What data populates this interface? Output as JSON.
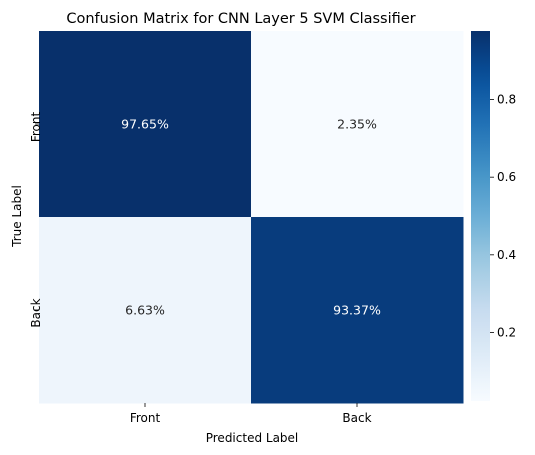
{
  "chart_data": {
    "type": "heatmap",
    "title": "Confusion Matrix for CNN Layer 5 SVM Classifier",
    "xlabel": "Predicted Label",
    "ylabel": "True Label",
    "x_categories": [
      "Front",
      "Back"
    ],
    "y_categories": [
      "Front",
      "Back"
    ],
    "values": [
      [
        0.9765,
        0.0235
      ],
      [
        0.0663,
        0.9337
      ]
    ],
    "cell_labels": [
      [
        "97.65%",
        "2.35%"
      ],
      [
        "6.63%",
        "93.37%"
      ]
    ],
    "colormap": "Blues",
    "colorbar": {
      "range": [
        0.0235,
        0.9765
      ],
      "ticks": [
        0.2,
        0.4,
        0.6,
        0.8
      ],
      "tick_labels": [
        "0.2",
        "0.4",
        "0.6",
        "0.8"
      ]
    }
  }
}
